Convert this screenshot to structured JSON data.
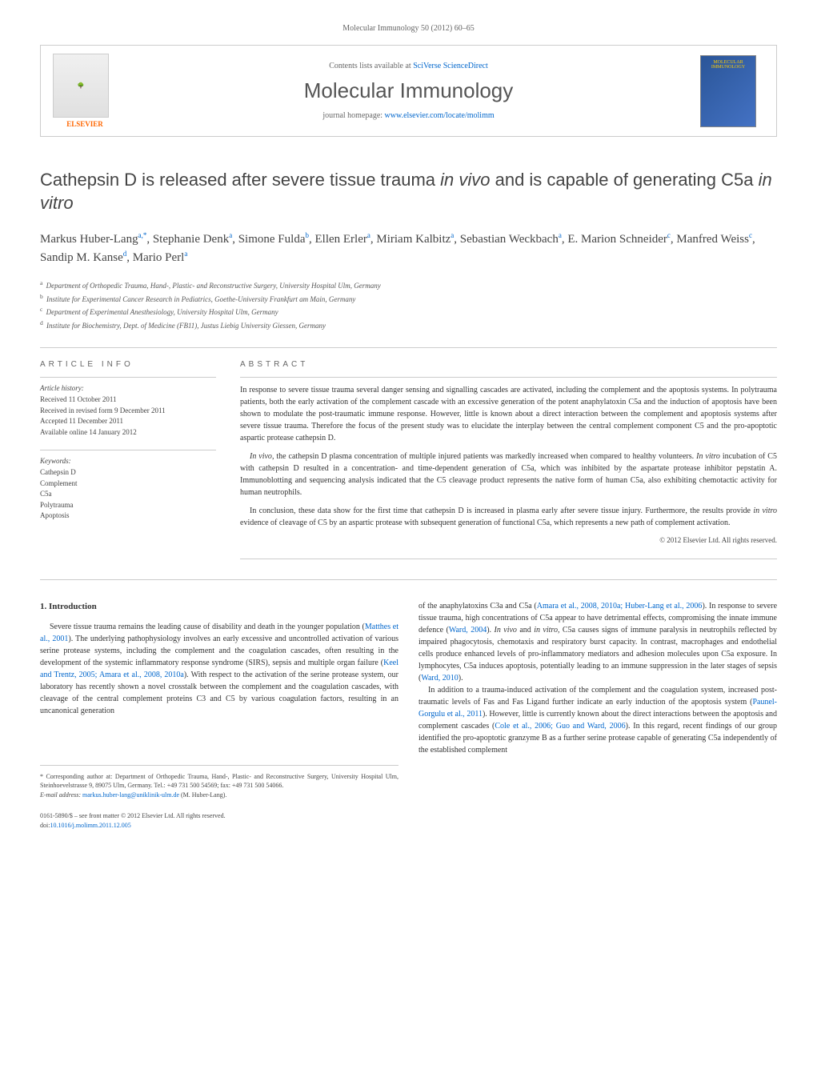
{
  "header": {
    "citation": "Molecular Immunology 50 (2012) 60–65"
  },
  "banner": {
    "elsevier_label": "ELSEVIER",
    "contents_prefix": "Contents lists available at ",
    "contents_link": "SciVerse ScienceDirect",
    "journal_name": "Molecular Immunology",
    "homepage_prefix": "journal homepage: ",
    "homepage_url": "www.elsevier.com/locate/molimm",
    "cover_title": "MOLECULAR IMMUNOLOGY"
  },
  "article": {
    "title_part1": "Cathepsin D is released after severe tissue trauma ",
    "title_italic1": "in vivo",
    "title_part2": " and is capable of generating C5a ",
    "title_italic2": "in vitro",
    "authors_html": "Markus Huber-Lang",
    "authors": [
      {
        "name": "Markus Huber-Lang",
        "sup": "a,*"
      },
      {
        "name": "Stephanie Denk",
        "sup": "a"
      },
      {
        "name": "Simone Fulda",
        "sup": "b"
      },
      {
        "name": "Ellen Erler",
        "sup": "a"
      },
      {
        "name": "Miriam Kalbitz",
        "sup": "a"
      },
      {
        "name": "Sebastian Weckbach",
        "sup": "a"
      },
      {
        "name": "E. Marion Schneider",
        "sup": "c"
      },
      {
        "name": "Manfred Weiss",
        "sup": "c"
      },
      {
        "name": "Sandip M. Kanse",
        "sup": "d"
      },
      {
        "name": "Mario Perl",
        "sup": "a"
      }
    ],
    "affiliations": [
      {
        "sup": "a",
        "text": "Department of Orthopedic Trauma, Hand-, Plastic- and Reconstructive Surgery, University Hospital Ulm, Germany"
      },
      {
        "sup": "b",
        "text": "Institute for Experimental Cancer Research in Pediatrics, Goethe-University Frankfurt am Main, Germany"
      },
      {
        "sup": "c",
        "text": "Department of Experimental Anesthesiology, University Hospital Ulm, Germany"
      },
      {
        "sup": "d",
        "text": "Institute for Biochemistry, Dept. of Medicine (FB11), Justus Liebig University Giessen, Germany"
      }
    ]
  },
  "info": {
    "heading": "ARTICLE INFO",
    "history_label": "Article history:",
    "history": "Received 11 October 2011\nReceived in revised form 9 December 2011\nAccepted 11 December 2011\nAvailable online 14 January 2012",
    "keywords_label": "Keywords:",
    "keywords": "Cathepsin D\nComplement\nC5a\nPolytrauma\nApoptosis"
  },
  "abstract": {
    "heading": "ABSTRACT",
    "p1": "In response to severe tissue trauma several danger sensing and signalling cascades are activated, including the complement and the apoptosis systems. In polytrauma patients, both the early activation of the complement cascade with an excessive generation of the potent anaphylatoxin C5a and the induction of apoptosis have been shown to modulate the post-traumatic immune response. However, little is known about a direct interaction between the complement and apoptosis systems after severe tissue trauma. Therefore the focus of the present study was to elucidate the interplay between the central complement component C5 and the pro-apoptotic aspartic protease cathepsin D.",
    "p2_prefix": "",
    "p2_italic1": "In vivo",
    "p2_mid1": ", the cathepsin D plasma concentration of multiple injured patients was markedly increased when compared to healthy volunteers. ",
    "p2_italic2": "In vitro",
    "p2_mid2": " incubation of C5 with cathepsin D resulted in a concentration- and time-dependent generation of C5a, which was inhibited by the aspartate protease inhibitor pepstatin A. Immunoblotting and sequencing analysis indicated that the C5 cleavage product represents the native form of human C5a, also exhibiting chemotactic activity for human neutrophils.",
    "p3_prefix": "In conclusion, these data show for the first time that cathepsin D is increased in plasma early after severe tissue injury. Furthermore, the results provide ",
    "p3_italic": "in vitro",
    "p3_suffix": " evidence of cleavage of C5 by an aspartic protease with subsequent generation of functional C5a, which represents a new path of complement activation.",
    "copyright": "© 2012 Elsevier Ltd. All rights reserved."
  },
  "body": {
    "section_heading": "1. Introduction",
    "col1_p1_prefix": "Severe tissue trauma remains the leading cause of disability and death in the younger population (",
    "col1_p1_ref1": "Matthes et al., 2001",
    "col1_p1_mid1": "). The underlying pathophysiology involves an early excessive and uncontrolled activation of various serine protease systems, including the complement and the coagulation cascades, often resulting in the development of the systemic inflammatory response syndrome (SIRS), sepsis and multiple organ failure (",
    "col1_p1_ref2": "Keel and Trentz, 2005; Amara et al., 2008, 2010a",
    "col1_p1_suffix": "). With respect to the activation of the serine protease system, our laboratory has recently shown a novel crosstalk between the complement and the coagulation cascades, with cleavage of the central complement proteins C3 and C5 by various coagulation factors, resulting in an uncanonical generation",
    "col2_p1_prefix": "of the anaphylatoxins C3a and C5a (",
    "col2_p1_ref1": "Amara et al., 2008, 2010a; Huber-Lang et al., 2006",
    "col2_p1_mid1": "). In response to severe tissue trauma, high concentrations of C5a appear to have detrimental effects, compromising the innate immune defence (",
    "col2_p1_ref2": "Ward, 2004",
    "col2_p1_mid2": "). ",
    "col2_p1_italic1": "In vivo",
    "col2_p1_mid3": " and ",
    "col2_p1_italic2": "in vitro",
    "col2_p1_mid4": ", C5a causes signs of immune paralysis in neutrophils reflected by impaired phagocytosis, chemotaxis and respiratory burst capacity. In contrast, macrophages and endothelial cells produce enhanced levels of pro-inflammatory mediators and adhesion molecules upon C5a exposure. In lymphocytes, C5a induces apoptosis, potentially leading to an immune suppression in the later stages of sepsis (",
    "col2_p1_ref3": "Ward, 2010",
    "col2_p1_suffix": ").",
    "col2_p2_prefix": "In addition to a trauma-induced activation of the complement and the coagulation system, increased post-traumatic levels of Fas and Fas Ligand further indicate an early induction of the apoptosis system (",
    "col2_p2_ref1": "Paunel-Gorgulu et al., 2011",
    "col2_p2_mid1": "). However, little is currently known about the direct interactions between the apoptosis and complement cascades (",
    "col2_p2_ref2": "Cole et al., 2006; Guo and Ward, 2006",
    "col2_p2_suffix": "). In this regard, recent findings of our group identified the pro-apoptotic granzyme B as a further serine protease capable of generating C5a independently of the established complement"
  },
  "footer": {
    "corr_prefix": "* Corresponding author at: Department of Orthopedic Trauma, Hand-, Plastic- and Reconstructive Surgery, University Hospital Ulm, Steinhoevelstrasse 9, 89075 Ulm, Germany. Tel.: +49 731 500 54569; fax: +49 731 500 54066.",
    "email_label": "E-mail address: ",
    "email": "markus.huber-lang@uniklinik-ulm.de",
    "email_name": " (M. Huber-Lang).",
    "issn": "0161-5890/$ – see front matter © 2012 Elsevier Ltd. All rights reserved.",
    "doi_label": "doi:",
    "doi": "10.1016/j.molimm.2011.12.005"
  },
  "colors": {
    "link": "#0066cc",
    "text": "#333333",
    "muted": "#666666",
    "border": "#cccccc",
    "elsevier_orange": "#ff6600"
  }
}
